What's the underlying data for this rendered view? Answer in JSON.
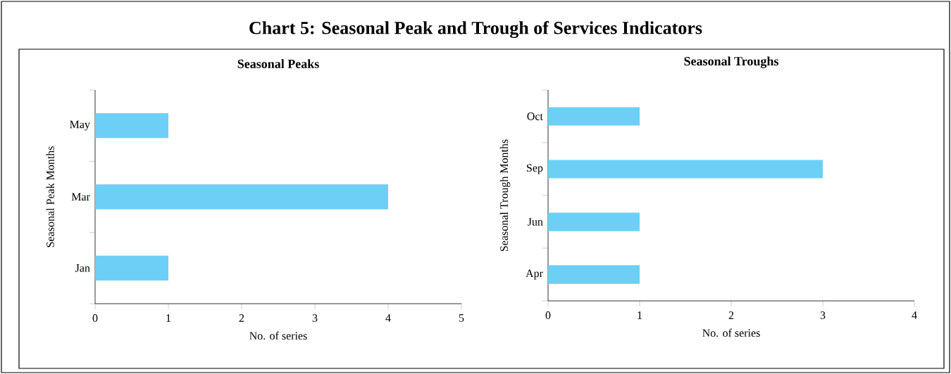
{
  "chart_data": [
    {
      "type": "bar",
      "orientation": "horizontal",
      "title": "Chart 5: Seasonal Peak and Trough of Services Indicators",
      "subtitle": "Seasonal Peaks",
      "xlabel": "No. of series",
      "ylabel": "Seasonal Peak Months",
      "categories": [
        "May",
        "Mar",
        "Jan"
      ],
      "values": [
        1,
        4,
        1
      ],
      "color": "#6dcff6",
      "xlim": [
        0,
        5
      ],
      "xticks": [
        0,
        1,
        2,
        3,
        4,
        5
      ],
      "grid": false
    },
    {
      "type": "bar",
      "orientation": "horizontal",
      "subtitle": "Seasonal Troughs",
      "xlabel": "No. of series",
      "ylabel": "Seasonal Trough Months",
      "categories": [
        "Oct",
        "Sep",
        "Jun",
        "Apr"
      ],
      "values": [
        1,
        3,
        1,
        1
      ],
      "color": "#6dcff6",
      "xlim": [
        0,
        4
      ],
      "xticks": [
        0,
        1,
        2,
        3,
        4
      ],
      "grid": false
    }
  ]
}
